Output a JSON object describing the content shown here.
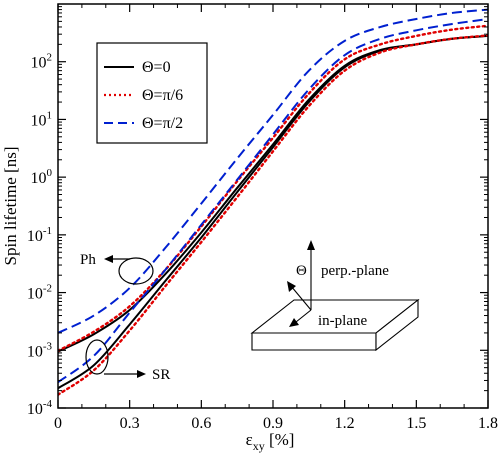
{
  "chart_data": {
    "type": "line",
    "title": "",
    "ylabel": "Spin lifetime [ns]",
    "xlabel": {
      "main": "ε",
      "sub": "xy",
      "unit": " [%]"
    },
    "xlim": [
      0,
      1.8
    ],
    "ylim": [
      0.0001,
      1000
    ],
    "yscale": "log",
    "grid": false,
    "legend_position": "top-left",
    "x_ticks": [
      0,
      0.3,
      0.6,
      0.9,
      1.2,
      1.5,
      1.8
    ],
    "x_tick_labels": [
      "0",
      "0.3",
      "0.6",
      "0.9",
      "1.2",
      "1.5",
      "1.8"
    ],
    "y_ticks": [
      {
        "value": 0.0001,
        "base": "10",
        "exp": "-4"
      },
      {
        "value": 0.001,
        "base": "10",
        "exp": "-3"
      },
      {
        "value": 0.01,
        "base": "10",
        "exp": "-2"
      },
      {
        "value": 0.1,
        "base": "10",
        "exp": "-1"
      },
      {
        "value": 1,
        "base": "10",
        "exp": "0"
      },
      {
        "value": 10,
        "base": "10",
        "exp": "1"
      },
      {
        "value": 100,
        "base": "10",
        "exp": "2"
      }
    ],
    "series": [
      {
        "name": "Θ=0",
        "color": "#000000",
        "dash": "solid",
        "branch": "upper",
        "x": [
          0,
          0.15,
          0.3,
          0.45,
          0.6,
          0.75,
          0.9,
          1.05,
          1.2,
          1.35,
          1.5,
          1.65,
          1.8
        ],
        "y": [
          0.00095,
          0.0019,
          0.005,
          0.021,
          0.11,
          0.65,
          3.7,
          22,
          85,
          160,
          200,
          250,
          280
        ]
      },
      {
        "name": "Θ=0",
        "color": "#000000",
        "dash": "solid",
        "branch": "lower",
        "x": [
          0,
          0.15,
          0.3,
          0.45,
          0.6,
          0.75,
          0.9,
          1.05,
          1.2,
          1.35,
          1.5,
          1.65,
          1.8
        ],
        "y": [
          0.00022,
          0.00055,
          0.0028,
          0.016,
          0.09,
          0.55,
          3.3,
          20,
          80,
          155,
          200,
          250,
          280
        ]
      },
      {
        "name": "Θ=π/6",
        "color": "#e00000",
        "dash": "dotted",
        "branch": "upper",
        "x": [
          0,
          0.15,
          0.3,
          0.45,
          0.6,
          0.75,
          0.9,
          1.05,
          1.2,
          1.35,
          1.5,
          1.65,
          1.8
        ],
        "y": [
          0.00098,
          0.0021,
          0.0058,
          0.025,
          0.14,
          0.85,
          4.8,
          28,
          110,
          200,
          280,
          360,
          420
        ]
      },
      {
        "name": "Θ=π/6",
        "color": "#e00000",
        "dash": "dotted",
        "branch": "lower",
        "x": [
          0,
          0.15,
          0.3,
          0.45,
          0.6,
          0.75,
          0.9,
          1.05,
          1.2,
          1.35,
          1.5,
          1.65,
          1.8
        ],
        "y": [
          0.00017,
          0.00045,
          0.0022,
          0.013,
          0.075,
          0.45,
          2.8,
          17,
          70,
          145,
          200,
          250,
          285
        ]
      },
      {
        "name": "Θ=π/2",
        "color": "#0020d0",
        "dash": "dashed",
        "branch": "upper",
        "x": [
          0,
          0.15,
          0.3,
          0.45,
          0.6,
          0.75,
          0.9,
          1.05,
          1.2,
          1.35,
          1.5,
          1.65,
          1.8
        ],
        "y": [
          0.002,
          0.004,
          0.012,
          0.06,
          0.35,
          2.1,
          12,
          70,
          230,
          400,
          550,
          700,
          800
        ]
      },
      {
        "name": "Θ=π/2",
        "color": "#0020d0",
        "dash": "dashed",
        "branch": "lower",
        "x": [
          0,
          0.15,
          0.3,
          0.45,
          0.6,
          0.75,
          0.9,
          1.05,
          1.2,
          1.35,
          1.5,
          1.65,
          1.8
        ],
        "y": [
          0.00028,
          0.0008,
          0.0045,
          0.025,
          0.15,
          0.9,
          5.5,
          33,
          130,
          250,
          350,
          450,
          550
        ]
      }
    ],
    "legend": [
      {
        "label": "Θ=0",
        "color": "#000000",
        "dash": "solid"
      },
      {
        "label": "Θ=π/6",
        "color": "#e00000",
        "dash": "dotted"
      },
      {
        "label": "Θ=π/2",
        "color": "#0020d0",
        "dash": "dashed"
      }
    ],
    "annotations": {
      "ph": "Ph",
      "sr": "SR",
      "theta": "Θ",
      "perp_plane": "perp.-plane",
      "in_plane": "in-plane"
    }
  }
}
